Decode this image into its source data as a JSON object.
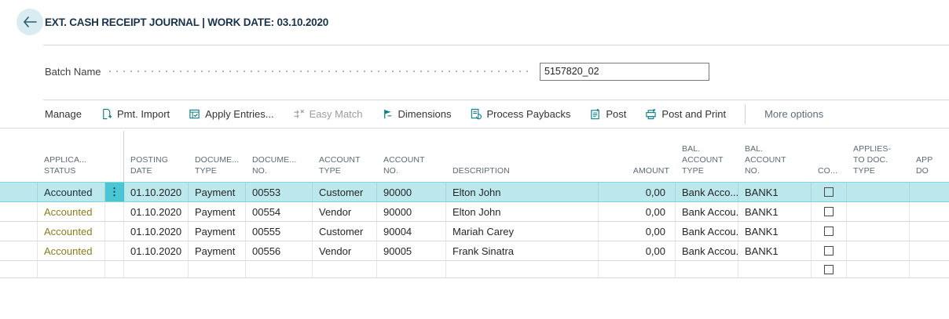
{
  "colors": {
    "accent_teal": "#0d7e88",
    "title_navy": "#17334e",
    "selected_row_bg": "#bce8ed",
    "selected_handle_bg": "#49c5d4",
    "status_olive": "#8a7d1a"
  },
  "app_header": {
    "title": "EXT. CASH RECEIPT JOURNAL | WORK DATE: 03.10.2020",
    "back_icon": "back-arrow-icon"
  },
  "batch": {
    "label": "Batch Name",
    "value": "5157820_02"
  },
  "toolbar": {
    "items": [
      {
        "label": "Manage",
        "icon": null,
        "disabled": false
      },
      {
        "label": "Pmt. Import",
        "icon": "pmt-import-icon",
        "disabled": false
      },
      {
        "label": "Apply Entries...",
        "icon": "apply-entries-icon",
        "disabled": false
      },
      {
        "label": "Easy Match",
        "icon": "easy-match-icon",
        "disabled": true
      },
      {
        "label": "Dimensions",
        "icon": "dimensions-icon",
        "disabled": false
      },
      {
        "label": "Process Paybacks",
        "icon": "process-paybacks-icon",
        "disabled": false
      },
      {
        "label": "Post",
        "icon": "post-icon",
        "disabled": false
      },
      {
        "label": "Post and Print",
        "icon": "post-and-print-icon",
        "disabled": false
      }
    ],
    "more_label": "More options"
  },
  "table": {
    "columns": [
      {
        "id": "gutter",
        "lines": []
      },
      {
        "id": "application-status",
        "lines": [
          "APPLICA...",
          "STATUS"
        ]
      },
      {
        "id": "row-handle",
        "lines": []
      },
      {
        "id": "posting-date",
        "lines": [
          "POSTING",
          "DATE"
        ]
      },
      {
        "id": "document-type",
        "lines": [
          "DOCUME...",
          "TYPE"
        ]
      },
      {
        "id": "document-no",
        "lines": [
          "DOCUME...",
          "NO."
        ]
      },
      {
        "id": "account-type",
        "lines": [
          "ACCOUNT",
          "TYPE"
        ]
      },
      {
        "id": "account-no",
        "lines": [
          "ACCOUNT",
          "NO."
        ]
      },
      {
        "id": "description",
        "lines": [
          "DESCRIPTION"
        ]
      },
      {
        "id": "amount",
        "lines": [
          "AMOUNT"
        ],
        "align": "right"
      },
      {
        "id": "bal-account-type",
        "lines": [
          "BAL.",
          "ACCOUNT",
          "TYPE"
        ]
      },
      {
        "id": "bal-account-no",
        "lines": [
          "BAL.",
          "ACCOUNT",
          "NO."
        ]
      },
      {
        "id": "co",
        "lines": [
          "CO..."
        ]
      },
      {
        "id": "applies-to-doc-type",
        "lines": [
          "APPLIES-",
          "TO DOC.",
          "TYPE"
        ]
      },
      {
        "id": "applies-to-doc-no",
        "lines": [
          "APP",
          "DO"
        ]
      }
    ],
    "rows": [
      {
        "selected": true,
        "handle_glyph": "⋮",
        "status": "Accounted",
        "status_style": "dark",
        "posting_date": "01.10.2020",
        "doc_type": "Payment",
        "doc_no": "00553",
        "account_type": "Customer",
        "account_no": "90000",
        "description": "Elton John",
        "amount": "0,00",
        "bal_account_type": "Bank Acco...",
        "bal_account_no": "BANK1",
        "co_checked": false
      },
      {
        "selected": false,
        "handle_glyph": "",
        "status": "Accounted",
        "status_style": "olive",
        "posting_date": "01.10.2020",
        "doc_type": "Payment",
        "doc_no": "00554",
        "account_type": "Vendor",
        "account_no": "90000",
        "description": "Elton John",
        "amount": "0,00",
        "bal_account_type": "Bank Accou...",
        "bal_account_no": "BANK1",
        "co_checked": false
      },
      {
        "selected": false,
        "handle_glyph": "",
        "status": "Accounted",
        "status_style": "olive",
        "posting_date": "01.10.2020",
        "doc_type": "Payment",
        "doc_no": "00555",
        "account_type": "Customer",
        "account_no": "90004",
        "description": "Mariah Carey",
        "amount": "0,00",
        "bal_account_type": "Bank Accou...",
        "bal_account_no": "BANK1",
        "co_checked": false
      },
      {
        "selected": false,
        "handle_glyph": "",
        "status": "Accounted",
        "status_style": "olive",
        "posting_date": "01.10.2020",
        "doc_type": "Payment",
        "doc_no": "00556",
        "account_type": "Vendor",
        "account_no": "90005",
        "description": "Frank Sinatra",
        "amount": "0,00",
        "bal_account_type": "Bank Accou...",
        "bal_account_no": "BANK1",
        "co_checked": false
      },
      {
        "selected": false,
        "empty": true,
        "handle_glyph": "",
        "status": "",
        "status_style": "",
        "posting_date": "",
        "doc_type": "",
        "doc_no": "",
        "account_type": "",
        "account_no": "",
        "description": "",
        "amount": "",
        "bal_account_type": "",
        "bal_account_no": "",
        "co_checked": false
      }
    ]
  }
}
